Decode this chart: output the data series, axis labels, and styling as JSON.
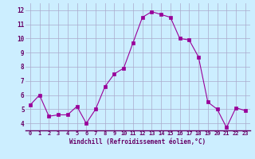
{
  "xlabel": "Windchill (Refroidissement éolien,°C)",
  "x": [
    0,
    1,
    2,
    3,
    4,
    5,
    6,
    7,
    8,
    9,
    10,
    11,
    12,
    13,
    14,
    15,
    16,
    17,
    18,
    19,
    20,
    21,
    22,
    23
  ],
  "y": [
    5.3,
    6.0,
    4.5,
    4.6,
    4.6,
    5.2,
    4.0,
    5.0,
    6.6,
    7.5,
    7.9,
    9.7,
    11.5,
    11.9,
    11.7,
    11.5,
    10.0,
    9.9,
    8.7,
    5.5,
    5.0,
    3.7,
    5.1,
    4.9
  ],
  "line_color": "#990099",
  "marker_color": "#990099",
  "bg_color": "#cceeff",
  "grid_color": "#aaaacc",
  "axis_label_color": "#660066",
  "tick_color": "#660066",
  "ylim_min": 3.5,
  "ylim_max": 12.5,
  "xlim_min": -0.5,
  "xlim_max": 23.5,
  "yticks": [
    4,
    5,
    6,
    7,
    8,
    9,
    10,
    11,
    12
  ],
  "xtick_labels": [
    "0",
    "1",
    "2",
    "3",
    "4",
    "5",
    "6",
    "7",
    "8",
    "9",
    "10",
    "11",
    "12",
    "13",
    "14",
    "15",
    "16",
    "17",
    "18",
    "19",
    "20",
    "21",
    "22",
    "23"
  ]
}
